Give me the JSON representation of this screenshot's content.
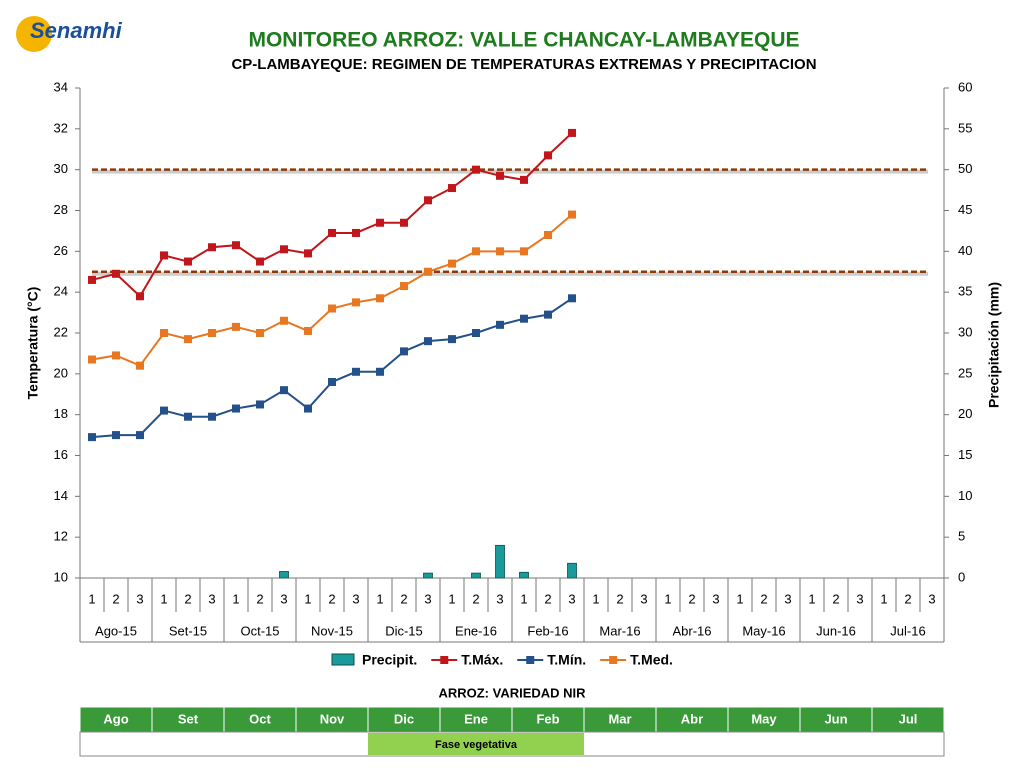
{
  "logo": "Senamhi",
  "chart_data": {
    "type": "line",
    "title": "MONITOREO ARROZ: VALLE CHANCAY-LAMBAYEQUE",
    "subtitle": "CP-LAMBAYEQUE: REGIMEN DE TEMPERATURAS EXTREMAS Y PRECIPITACION",
    "ylabel": "Temperatura (°C)",
    "y2label": "Precipitación (mm)",
    "categories": [
      "1",
      "2",
      "3",
      "1",
      "2",
      "3",
      "1",
      "2",
      "3",
      "1",
      "2",
      "3",
      "1",
      "2",
      "3",
      "1",
      "2",
      "3",
      "1",
      "2",
      "3",
      "1",
      "2",
      "3",
      "1",
      "2",
      "3",
      "1",
      "2",
      "3",
      "1",
      "2",
      "3",
      "1",
      "2",
      "3"
    ],
    "category_groups": [
      "Ago-15",
      "Set-15",
      "Oct-15",
      "Nov-15",
      "Dic-15",
      "Ene-16",
      "Feb-16",
      "Mar-16",
      "Abr-16",
      "May-16",
      "Jun-16",
      "Jul-16"
    ],
    "ylim": [
      10,
      34
    ],
    "yticks": [
      10,
      12,
      14,
      16,
      18,
      20,
      22,
      24,
      26,
      28,
      30,
      32,
      34
    ],
    "y2lim": [
      0,
      60
    ],
    "y2ticks": [
      0,
      5,
      10,
      15,
      20,
      25,
      30,
      35,
      40,
      45,
      50,
      55,
      60
    ],
    "reference_lines": [
      30,
      25
    ],
    "reference_color": "#8b3a0a",
    "series": [
      {
        "name": "Precipit.",
        "type": "bar",
        "axis": "y2",
        "color": "#1a9b9b",
        "values": [
          0,
          0,
          0,
          0,
          0,
          0,
          0,
          0,
          0.8,
          0,
          0,
          0,
          0,
          0,
          0.6,
          0,
          0.6,
          4,
          0.7,
          0,
          1.8,
          null,
          null,
          null,
          null,
          null,
          null,
          null,
          null,
          null,
          null,
          null,
          null,
          null,
          null,
          null
        ]
      },
      {
        "name": "T.Máx.",
        "color": "#c0161c",
        "values": [
          24.6,
          24.9,
          23.8,
          25.8,
          25.5,
          26.2,
          26.3,
          25.5,
          26.1,
          25.9,
          26.9,
          26.9,
          27.4,
          27.4,
          28.5,
          29.1,
          30.0,
          29.7,
          29.5,
          30.7,
          31.8,
          null,
          null,
          null,
          null,
          null,
          null,
          null,
          null,
          null,
          null,
          null,
          null,
          null,
          null,
          null
        ]
      },
      {
        "name": "T.Mín.",
        "color": "#24518a",
        "values": [
          16.9,
          17.0,
          17.0,
          18.2,
          17.9,
          17.9,
          18.3,
          18.5,
          19.2,
          18.3,
          19.6,
          20.1,
          20.1,
          21.1,
          21.6,
          21.7,
          22.0,
          22.4,
          22.7,
          22.9,
          23.7,
          null,
          null,
          null,
          null,
          null,
          null,
          null,
          null,
          null,
          null,
          null,
          null,
          null,
          null,
          null
        ]
      },
      {
        "name": "T.Med.",
        "color": "#e87722",
        "values": [
          20.7,
          20.9,
          20.4,
          22.0,
          21.7,
          22.0,
          22.3,
          22.0,
          22.6,
          22.1,
          23.2,
          23.5,
          23.7,
          24.3,
          25.0,
          25.4,
          26.0,
          26.0,
          26.0,
          26.8,
          27.8,
          null,
          null,
          null,
          null,
          null,
          null,
          null,
          null,
          null,
          null,
          null,
          null,
          null,
          null,
          null
        ]
      }
    ]
  },
  "phase_table": {
    "title": "ARROZ: VARIEDAD NIR",
    "months": [
      "Ago",
      "Set",
      "Oct",
      "Nov",
      "Dic",
      "Ene",
      "Feb",
      "Mar",
      "Abr",
      "May",
      "Jun",
      "Jul"
    ],
    "phases": [
      {
        "label": "Fase vegetativa",
        "from": "Dic",
        "to": "Feb"
      }
    ]
  }
}
